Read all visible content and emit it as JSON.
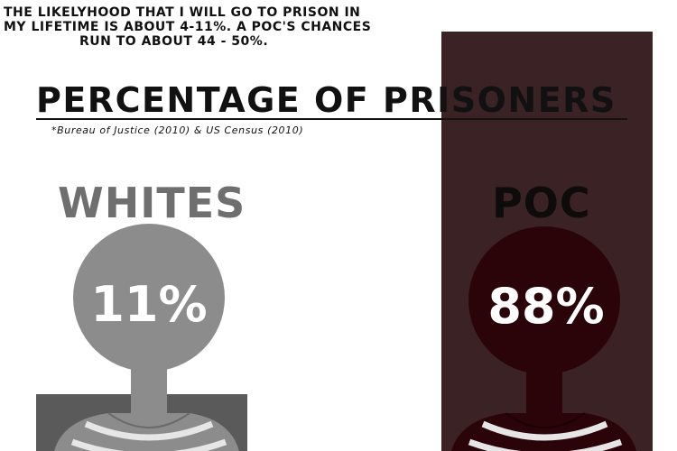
{
  "caption": {
    "line1": "The likelyhood that I will go to prison in",
    "line2": "my lifetime is about 4-11%. A POC's chances",
    "line3": "run to about 44 - 50%."
  },
  "title": "PERCENTAGE OF PRISONERS",
  "source": "*Bureau of Justice (2010) & US Census (2010)",
  "groups": [
    {
      "label": "WHITES",
      "percent": "11%",
      "color": "#6f6f6f"
    },
    {
      "label": "POC",
      "percent": "88%",
      "color": "#2a0408"
    }
  ],
  "colors": {
    "panel": "#3b2225",
    "left_figure": "#8c8c8c",
    "right_figure": "#2a0408"
  }
}
